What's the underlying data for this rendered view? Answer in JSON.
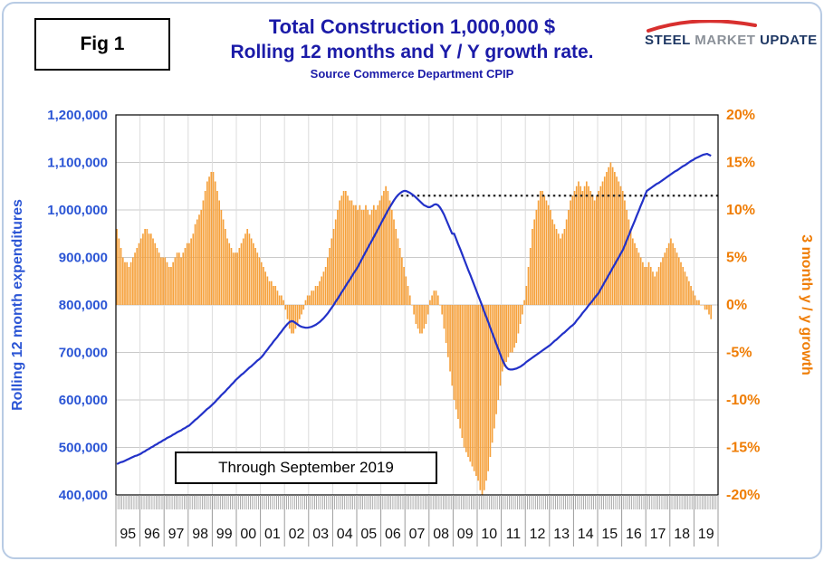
{
  "figure_label": "Fig 1",
  "title": {
    "line1": "Total Construction 1,000,000 $",
    "line2": "Rolling 12 months and Y / Y growth rate.",
    "source": "Source Commerce Department CPIP"
  },
  "logo": {
    "word1": "STEEL",
    "word2": "MARKET",
    "word3": "UPDATE"
  },
  "annotation": "Through September 2019",
  "colors": {
    "title_navy": "#1b1ba8",
    "bar_orange": "#f6a13c",
    "line_blue": "#2231c8",
    "left_axis_blue": "#2b55d5",
    "right_axis_orange": "#ef7d05",
    "gridline": "#c9c9c9",
    "year_grid": "#dcdcdc",
    "reference_black": "#222222",
    "plot_border": "#000000"
  },
  "chart_data": {
    "type": "bar",
    "subtype": "combo-bar-line",
    "title": "Total Construction 1,000,000 $ — Rolling 12 months and Y / Y growth rate",
    "x": {
      "start_year": 1995,
      "start_month": 1,
      "end_year": 2019,
      "end_month": 9,
      "year_labels": [
        "95",
        "96",
        "97",
        "98",
        "99",
        "00",
        "01",
        "02",
        "03",
        "04",
        "05",
        "06",
        "07",
        "08",
        "09",
        "10",
        "11",
        "12",
        "13",
        "14",
        "15",
        "16",
        "17",
        "18",
        "19"
      ]
    },
    "left_axis": {
      "title": "Rolling 12 month expenditures",
      "unit": "thousand dollars",
      "min": 400,
      "max": 1200,
      "step": 100,
      "tick_labels": [
        "1,200,000",
        "1,100,000",
        "1,000,000",
        "900,000",
        "800,000",
        "700,000",
        "600,000",
        "500,000",
        "400,000"
      ]
    },
    "right_axis": {
      "title": "3 month y / y growth",
      "unit": "percent",
      "min": -20,
      "max": 20,
      "step": 5,
      "tick_labels": [
        "20%",
        "15%",
        "10%",
        "5%",
        "0%",
        "-5%",
        "-10%",
        "-15%",
        "-20%"
      ]
    },
    "reference_line": {
      "axis": "right",
      "value": 11.5,
      "start_month_index": 142,
      "style": "dotted"
    },
    "series": [
      {
        "name": "3 month y / y growth",
        "type": "bar",
        "axis": "right",
        "values": [
          8.0,
          7.0,
          6.0,
          5.0,
          4.5,
          4.5,
          4.0,
          4.5,
          5.0,
          5.5,
          6.0,
          6.5,
          7.0,
          7.5,
          8.0,
          8.0,
          7.5,
          7.5,
          7.0,
          6.5,
          6.0,
          5.5,
          5.0,
          5.0,
          5.0,
          4.5,
          4.0,
          4.0,
          4.5,
          5.0,
          5.5,
          5.5,
          5.0,
          5.5,
          6.0,
          6.5,
          6.5,
          7.0,
          7.5,
          8.5,
          9.0,
          9.5,
          10.0,
          11.0,
          12.0,
          13.0,
          13.5,
          14.0,
          14.0,
          13.0,
          12.0,
          11.0,
          10.0,
          9.0,
          8.0,
          7.0,
          6.5,
          6.0,
          5.5,
          5.5,
          5.5,
          6.0,
          6.5,
          7.0,
          7.5,
          8.0,
          7.5,
          7.0,
          6.5,
          6.0,
          5.5,
          5.0,
          4.5,
          4.0,
          3.5,
          3.0,
          2.5,
          2.5,
          2.0,
          2.0,
          1.5,
          1.0,
          1.0,
          0.5,
          -0.5,
          -1.5,
          -2.5,
          -3.0,
          -3.0,
          -2.5,
          -2.0,
          -1.5,
          -1.0,
          -0.5,
          0.5,
          1.0,
          1.0,
          1.5,
          1.5,
          2.0,
          2.0,
          2.5,
          3.0,
          3.5,
          4.0,
          5.0,
          6.0,
          7.0,
          8.0,
          9.0,
          10.0,
          11.0,
          11.5,
          12.0,
          12.0,
          11.5,
          11.0,
          11.0,
          10.5,
          10.5,
          10.0,
          10.5,
          10.0,
          10.0,
          10.5,
          10.0,
          9.5,
          10.0,
          10.5,
          10.0,
          10.5,
          11.0,
          11.5,
          12.0,
          12.5,
          12.0,
          11.0,
          10.0,
          9.0,
          8.0,
          7.0,
          6.0,
          5.0,
          4.0,
          3.0,
          2.0,
          1.0,
          0.0,
          -1.0,
          -2.0,
          -2.5,
          -3.0,
          -3.0,
          -2.5,
          -2.0,
          -1.0,
          0.5,
          1.0,
          1.5,
          1.5,
          1.0,
          0.0,
          -1.0,
          -2.5,
          -4.0,
          -5.5,
          -7.0,
          -8.5,
          -10.0,
          -11.0,
          -12.0,
          -13.0,
          -14.0,
          -15.0,
          -15.5,
          -16.0,
          -16.5,
          -17.0,
          -17.5,
          -18.0,
          -18.5,
          -19.5,
          -20.0,
          -19.5,
          -18.5,
          -17.5,
          -16.0,
          -14.5,
          -13.0,
          -11.5,
          -10.0,
          -8.5,
          -7.0,
          -6.5,
          -6.0,
          -5.5,
          -5.0,
          -5.0,
          -4.5,
          -4.0,
          -3.0,
          -2.0,
          -1.0,
          0.5,
          2.0,
          4.0,
          6.0,
          8.0,
          9.0,
          10.0,
          11.0,
          12.0,
          12.0,
          11.5,
          11.0,
          10.5,
          10.0,
          9.0,
          8.5,
          8.0,
          7.5,
          7.0,
          7.5,
          8.0,
          9.0,
          10.0,
          11.0,
          11.5,
          12.0,
          12.5,
          13.0,
          12.5,
          12.0,
          12.5,
          13.0,
          12.5,
          12.0,
          11.5,
          11.0,
          11.5,
          12.0,
          12.5,
          13.0,
          13.5,
          14.0,
          14.5,
          15.0,
          14.5,
          14.0,
          13.5,
          13.0,
          12.5,
          12.0,
          11.0,
          10.0,
          9.0,
          8.0,
          7.0,
          6.5,
          6.0,
          5.5,
          5.0,
          4.5,
          4.0,
          4.0,
          4.5,
          4.0,
          3.5,
          3.0,
          3.5,
          4.0,
          4.5,
          5.0,
          5.5,
          6.0,
          6.5,
          7.0,
          6.5,
          6.0,
          5.5,
          5.0,
          4.5,
          4.0,
          3.5,
          3.0,
          2.5,
          2.0,
          1.5,
          1.0,
          0.5,
          0.5,
          0.0,
          0.0,
          -0.5,
          -0.5,
          -1.0,
          -1.5
        ]
      },
      {
        "name": "Rolling 12 month expenditures",
        "type": "line",
        "axis": "left",
        "values": [
          465,
          467,
          469,
          470,
          472,
          474,
          476,
          478,
          480,
          482,
          483,
          485,
          487,
          490,
          492,
          495,
          497,
          500,
          502,
          505,
          507,
          510,
          512,
          515,
          517,
          520,
          522,
          524,
          527,
          529,
          532,
          534,
          536,
          539,
          541,
          544,
          546,
          550,
          554,
          558,
          561,
          565,
          569,
          573,
          577,
          581,
          584,
          588,
          592,
          596,
          601,
          605,
          610,
          614,
          618,
          623,
          627,
          632,
          636,
          641,
          645,
          649,
          653,
          656,
          660,
          664,
          668,
          671,
          675,
          679,
          683,
          686,
          690,
          695,
          701,
          706,
          712,
          717,
          723,
          728,
          733,
          739,
          744,
          750,
          755,
          760,
          764,
          766,
          765,
          762,
          759,
          756,
          754,
          753,
          752,
          752,
          753,
          754,
          756,
          758,
          761,
          764,
          768,
          772,
          777,
          782,
          788,
          794,
          800,
          807,
          813,
          820,
          827,
          833,
          840,
          847,
          853,
          860,
          867,
          873,
          880,
          888,
          896,
          904,
          912,
          920,
          928,
          935,
          943,
          951,
          959,
          967,
          975,
          983,
          991,
          999,
          1006,
          1013,
          1020,
          1026,
          1031,
          1035,
          1038,
          1040,
          1040,
          1038,
          1036,
          1033,
          1030,
          1026,
          1022,
          1018,
          1014,
          1010,
          1008,
          1006,
          1006,
          1008,
          1011,
          1012,
          1010,
          1005,
          998,
          990,
          980,
          970,
          960,
          950,
          950,
          939,
          928,
          918,
          907,
          896,
          885,
          874,
          864,
          853,
          842,
          831,
          820,
          809,
          798,
          786,
          775,
          764,
          752,
          741,
          730,
          718,
          707,
          696,
          685,
          676,
          669,
          665,
          664,
          664,
          665,
          666,
          668,
          670,
          673,
          676,
          680,
          683,
          686,
          689,
          692,
          695,
          698,
          701,
          704,
          707,
          710,
          713,
          716,
          720,
          724,
          727,
          731,
          735,
          739,
          742,
          746,
          750,
          754,
          757,
          761,
          767,
          772,
          777,
          783,
          788,
          793,
          799,
          804,
          809,
          815,
          820,
          825,
          833,
          840,
          848,
          855,
          863,
          870,
          878,
          885,
          893,
          900,
          908,
          915,
          925,
          936,
          946,
          957,
          967,
          977,
          988,
          998,
          1009,
          1019,
          1030,
          1040,
          1043,
          1046,
          1049,
          1052,
          1055,
          1057,
          1060,
          1063,
          1066,
          1069,
          1072,
          1075,
          1078,
          1081,
          1083,
          1086,
          1089,
          1092,
          1094,
          1097,
          1100,
          1103,
          1105,
          1108,
          1110,
          1112,
          1114,
          1116,
          1117,
          1118,
          1116,
          1114
        ]
      }
    ]
  }
}
